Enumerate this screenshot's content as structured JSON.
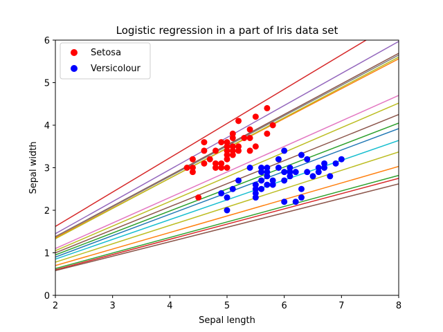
{
  "chart_data": {
    "type": "scatter",
    "title": "Logistic regression in a part of Iris data set",
    "xlabel": "Sepal length",
    "ylabel": "Sepal width",
    "xlim": [
      2,
      8
    ],
    "ylim": [
      0,
      6
    ],
    "xticks": [
      "2",
      "3",
      "4",
      "5",
      "6",
      "7",
      "8"
    ],
    "yticks": [
      "0",
      "1",
      "2",
      "3",
      "4",
      "5",
      "6"
    ],
    "grid": false,
    "legend_position": "top-left",
    "series": [
      {
        "name": "Setosa",
        "color": "#ff0000",
        "points": [
          [
            4.3,
            3.0
          ],
          [
            4.4,
            2.9
          ],
          [
            4.4,
            3.0
          ],
          [
            4.4,
            3.2
          ],
          [
            4.5,
            2.3
          ],
          [
            4.6,
            3.1
          ],
          [
            4.6,
            3.4
          ],
          [
            4.6,
            3.6
          ],
          [
            4.7,
            3.2
          ],
          [
            4.8,
            3.0
          ],
          [
            4.8,
            3.1
          ],
          [
            4.8,
            3.4
          ],
          [
            4.9,
            3.0
          ],
          [
            4.9,
            3.1
          ],
          [
            4.9,
            3.6
          ],
          [
            5.0,
            3.0
          ],
          [
            5.0,
            3.2
          ],
          [
            5.0,
            3.3
          ],
          [
            5.0,
            3.4
          ],
          [
            5.0,
            3.5
          ],
          [
            5.0,
            3.6
          ],
          [
            5.1,
            3.3
          ],
          [
            5.1,
            3.4
          ],
          [
            5.1,
            3.5
          ],
          [
            5.1,
            3.7
          ],
          [
            5.1,
            3.8
          ],
          [
            5.2,
            3.4
          ],
          [
            5.2,
            3.5
          ],
          [
            5.2,
            4.1
          ],
          [
            5.3,
            3.7
          ],
          [
            5.4,
            3.4
          ],
          [
            5.4,
            3.7
          ],
          [
            5.4,
            3.9
          ],
          [
            5.5,
            3.5
          ],
          [
            5.5,
            4.2
          ],
          [
            5.7,
            3.8
          ],
          [
            5.7,
            4.4
          ],
          [
            5.8,
            4.0
          ]
        ]
      },
      {
        "name": "Versicolour",
        "color": "#0000ff",
        "points": [
          [
            4.9,
            2.4
          ],
          [
            5.0,
            2.0
          ],
          [
            5.0,
            2.3
          ],
          [
            5.1,
            2.5
          ],
          [
            5.2,
            2.7
          ],
          [
            5.4,
            3.0
          ],
          [
            5.5,
            2.3
          ],
          [
            5.5,
            2.4
          ],
          [
            5.5,
            2.5
          ],
          [
            5.5,
            2.6
          ],
          [
            5.6,
            2.5
          ],
          [
            5.6,
            2.7
          ],
          [
            5.6,
            2.9
          ],
          [
            5.6,
            3.0
          ],
          [
            5.7,
            2.6
          ],
          [
            5.7,
            2.8
          ],
          [
            5.7,
            2.9
          ],
          [
            5.7,
            3.0
          ],
          [
            5.8,
            2.6
          ],
          [
            5.8,
            2.7
          ],
          [
            5.9,
            3.0
          ],
          [
            5.9,
            3.2
          ],
          [
            6.0,
            2.2
          ],
          [
            6.0,
            2.7
          ],
          [
            6.0,
            2.9
          ],
          [
            6.0,
            3.4
          ],
          [
            6.1,
            2.8
          ],
          [
            6.1,
            2.9
          ],
          [
            6.1,
            3.0
          ],
          [
            6.2,
            2.2
          ],
          [
            6.2,
            2.9
          ],
          [
            6.3,
            2.3
          ],
          [
            6.3,
            2.5
          ],
          [
            6.3,
            3.3
          ],
          [
            6.4,
            2.9
          ],
          [
            6.4,
            3.2
          ],
          [
            6.5,
            2.8
          ],
          [
            6.6,
            2.9
          ],
          [
            6.6,
            3.0
          ],
          [
            6.7,
            3.0
          ],
          [
            6.7,
            3.1
          ],
          [
            6.8,
            2.8
          ],
          [
            6.9,
            3.1
          ],
          [
            7.0,
            3.2
          ]
        ]
      }
    ],
    "lines": [
      {
        "color": "#d62728",
        "x": [
          2,
          8
        ],
        "y": [
          1.62,
          6.46
        ]
      },
      {
        "color": "#9467bd",
        "x": [
          2,
          8
        ],
        "y": [
          1.45,
          5.97
        ]
      },
      {
        "color": "#8c564b",
        "x": [
          2,
          8
        ],
        "y": [
          1.38,
          5.69
        ]
      },
      {
        "color": "#7f7f7f",
        "x": [
          2,
          8
        ],
        "y": [
          1.37,
          5.65
        ]
      },
      {
        "color": "#ff7f0e",
        "x": [
          2,
          8
        ],
        "y": [
          1.35,
          5.56
        ]
      },
      {
        "color": "#bcbd22",
        "x": [
          2,
          8
        ],
        "y": [
          1.33,
          5.6
        ]
      },
      {
        "color": "#e377c2",
        "x": [
          2,
          8
        ],
        "y": [
          1.1,
          4.7
        ]
      },
      {
        "color": "#bcbd22",
        "x": [
          2,
          8
        ],
        "y": [
          1.05,
          4.52
        ]
      },
      {
        "color": "#8c564b",
        "x": [
          2,
          8
        ],
        "y": [
          1.0,
          4.25
        ]
      },
      {
        "color": "#2ca02c",
        "x": [
          2,
          8
        ],
        "y": [
          0.95,
          4.05
        ]
      },
      {
        "color": "#1f77b4",
        "x": [
          2,
          8
        ],
        "y": [
          0.9,
          3.92
        ]
      },
      {
        "color": "#17becf",
        "x": [
          2,
          8
        ],
        "y": [
          0.85,
          3.64
        ]
      },
      {
        "color": "#bcbd22",
        "x": [
          2,
          8
        ],
        "y": [
          0.78,
          3.37
        ]
      },
      {
        "color": "#ff7f0e",
        "x": [
          2,
          8
        ],
        "y": [
          0.7,
          3.03
        ]
      },
      {
        "color": "#2ca02c",
        "x": [
          2,
          8
        ],
        "y": [
          0.63,
          2.82
        ]
      },
      {
        "color": "#d62728",
        "x": [
          2,
          8
        ],
        "y": [
          0.6,
          2.75
        ]
      },
      {
        "color": "#8c564b",
        "x": [
          2,
          8
        ],
        "y": [
          0.58,
          2.62
        ]
      }
    ]
  }
}
